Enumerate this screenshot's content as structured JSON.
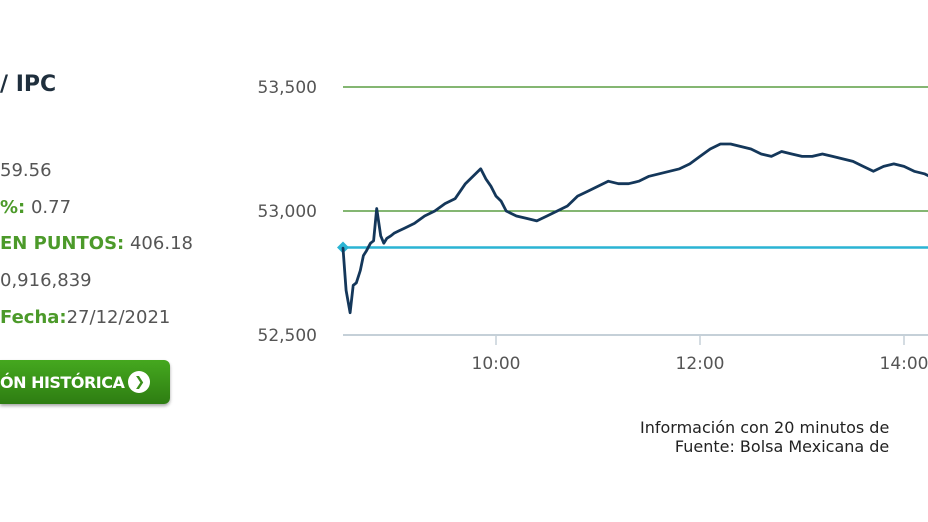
{
  "index": {
    "title": "IPC",
    "visible_title": "/ IPC",
    "value_line": "59.56",
    "pct_label": "%:",
    "pct_value": "0.77",
    "points_label": "EN PUNTOS:",
    "points_value": "406.18",
    "volume": "0,916,839",
    "date_label": "Fecha:",
    "date_value": "27/12/2021",
    "history_button": "ÓN HISTÓRICA"
  },
  "chart_data": {
    "type": "line",
    "y_ticks": [
      "53,500",
      "53,000",
      "52,500"
    ],
    "ylim": [
      52500,
      53500
    ],
    "x_ticks": [
      "10:00",
      "12:00",
      "14:00"
    ],
    "x_tick_hours": [
      10,
      12,
      14
    ],
    "xlim": [
      8.5,
      14.25
    ],
    "reference_value": 52853,
    "line_color": "#14375a",
    "reference_color": "#2ab4d4",
    "grid_color": "#3a8a1f",
    "series": [
      {
        "x": [
          8.5,
          8.53,
          8.57,
          8.6,
          8.63,
          8.67,
          8.7,
          8.73,
          8.77,
          8.8,
          8.83,
          8.87,
          8.9,
          8.93,
          8.97,
          9.0,
          9.05,
          9.1,
          9.2,
          9.3,
          9.4,
          9.5,
          9.6,
          9.7,
          9.8,
          9.85,
          9.9,
          9.95,
          10.0,
          10.05,
          10.1,
          10.2,
          10.3,
          10.4,
          10.5,
          10.6,
          10.7,
          10.8,
          10.9,
          11.0,
          11.1,
          11.2,
          11.3,
          11.4,
          11.5,
          11.6,
          11.7,
          11.8,
          11.9,
          12.0,
          12.1,
          12.2,
          12.3,
          12.4,
          12.5,
          12.6,
          12.7,
          12.8,
          12.9,
          13.0,
          13.1,
          13.2,
          13.3,
          13.4,
          13.5,
          13.6,
          13.7,
          13.8,
          13.9,
          14.0,
          14.1,
          14.2,
          14.25
        ],
        "y": [
          52850,
          52680,
          52590,
          52700,
          52710,
          52760,
          52820,
          52840,
          52870,
          52880,
          53010,
          52900,
          52870,
          52890,
          52900,
          52910,
          52920,
          52930,
          52950,
          52980,
          53000,
          53030,
          53050,
          53110,
          53150,
          53170,
          53130,
          53100,
          53060,
          53040,
          53000,
          52980,
          52970,
          52960,
          52980,
          53000,
          53020,
          53060,
          53080,
          53100,
          53120,
          53110,
          53110,
          53120,
          53140,
          53150,
          53160,
          53170,
          53190,
          53220,
          53250,
          53270,
          53270,
          53260,
          53250,
          53230,
          53220,
          53240,
          53230,
          53220,
          53220,
          53230,
          53220,
          53210,
          53200,
          53180,
          53160,
          53180,
          53190,
          53180,
          53160,
          53150,
          53140
        ]
      }
    ]
  },
  "footer": {
    "line1": "Información con 20 minutos de",
    "line2": "Fuente: Bolsa Mexicana de"
  }
}
